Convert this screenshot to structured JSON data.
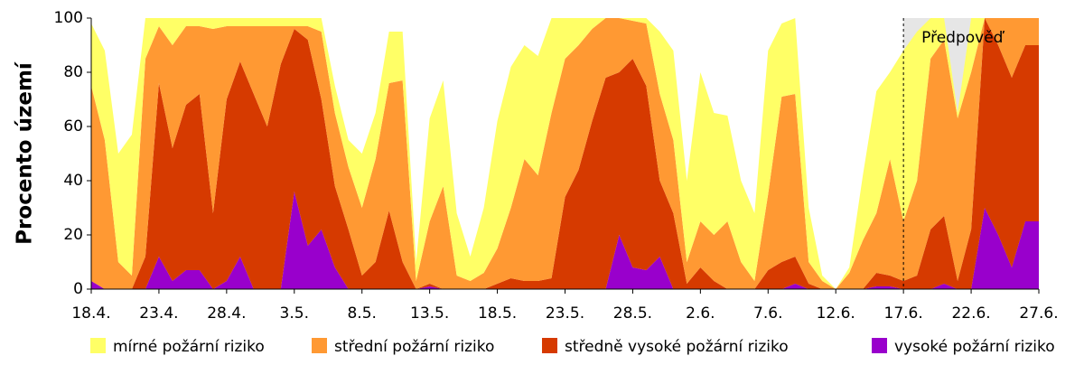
{
  "chart_data": {
    "type": "stacked_area",
    "y_label": "Procento území",
    "categories": [
      "18.4.",
      null,
      null,
      null,
      null,
      "23.4.",
      null,
      null,
      null,
      null,
      "28.4.",
      null,
      null,
      null,
      null,
      "3.5.",
      null,
      null,
      null,
      null,
      "8.5.",
      null,
      null,
      null,
      null,
      "13.5.",
      null,
      null,
      null,
      null,
      "18.5.",
      null,
      null,
      null,
      null,
      "23.5.",
      null,
      null,
      null,
      null,
      "28.5.",
      null,
      null,
      null,
      null,
      "2.6.",
      null,
      null,
      null,
      null,
      "7.6.",
      null,
      null,
      null,
      null,
      "12.6.",
      null,
      null,
      null,
      null,
      "17.6.",
      null,
      null,
      null,
      null,
      "22.6.",
      null,
      null,
      null,
      null,
      "27.6."
    ],
    "series": [
      {
        "name": "mírné požární riziko",
        "color": "#ffff66",
        "values": [
          23,
          33,
          40,
          52,
          15,
          3,
          10,
          3,
          3,
          4,
          3,
          3,
          3,
          3,
          3,
          3,
          3,
          5,
          10,
          10,
          20,
          17,
          19,
          18,
          7,
          38,
          39,
          23,
          9,
          24,
          47,
          52,
          42,
          44,
          35,
          15,
          10,
          4,
          0,
          0,
          1,
          2,
          23,
          33,
          30,
          55,
          45,
          39,
          30,
          25,
          53,
          27,
          28,
          20,
          2,
          0,
          2,
          24,
          45,
          32,
          63,
          55,
          15,
          8,
          2,
          20,
          0,
          0,
          0,
          0,
          0
        ]
      },
      {
        "name": "střední požární riziko",
        "color": "#ff9933",
        "values": [
          72,
          55,
          10,
          5,
          73,
          21,
          38,
          29,
          25,
          68,
          27,
          13,
          25,
          37,
          14,
          1,
          5,
          25,
          27,
          23,
          25,
          38,
          47,
          67,
          3,
          23,
          38,
          5,
          3,
          6,
          13,
          26,
          45,
          39,
          61,
          51,
          46,
          34,
          22,
          20,
          14,
          23,
          32,
          27,
          8,
          17,
          17,
          25,
          10,
          3,
          28,
          61,
          60,
          8,
          3,
          0,
          6,
          18,
          22,
          43,
          22,
          35,
          63,
          65,
          60,
          58,
          0,
          10,
          22,
          10,
          10
        ]
      },
      {
        "name": "středně vysoké požární riziko",
        "color": "#d63a00",
        "values": [
          0,
          0,
          0,
          0,
          12,
          64,
          49,
          61,
          65,
          28,
          67,
          72,
          72,
          60,
          83,
          60,
          76,
          48,
          30,
          22,
          5,
          10,
          29,
          10,
          0,
          1,
          0,
          0,
          0,
          0,
          2,
          4,
          3,
          3,
          4,
          34,
          44,
          62,
          78,
          60,
          77,
          68,
          28,
          28,
          2,
          8,
          3,
          0,
          0,
          0,
          7,
          10,
          10,
          2,
          0,
          0,
          0,
          0,
          5,
          4,
          3,
          5,
          22,
          25,
          3,
          22,
          70,
          70,
          70,
          65,
          65
        ]
      },
      {
        "name": "vysoké požární riziko",
        "color": "#9900cc",
        "values": [
          3,
          0,
          0,
          0,
          0,
          12,
          3,
          7,
          7,
          0,
          3,
          12,
          0,
          0,
          0,
          36,
          16,
          22,
          8,
          0,
          0,
          0,
          0,
          0,
          0,
          1,
          0,
          0,
          0,
          0,
          0,
          0,
          0,
          0,
          0,
          0,
          0,
          0,
          0,
          20,
          8,
          7,
          12,
          0,
          0,
          0,
          0,
          0,
          0,
          0,
          0,
          0,
          2,
          0,
          0,
          0,
          0,
          0,
          1,
          1,
          0,
          0,
          0,
          2,
          0,
          0,
          30,
          20,
          8,
          25,
          25
        ]
      }
    ],
    "ylim": [
      0,
      100
    ],
    "yticks": [
      0,
      20,
      40,
      60,
      80,
      100
    ],
    "forecast_label": "Předpověď",
    "forecast_start": "17.6.",
    "forecast_color": "#e6e6e6",
    "legend": "bottom"
  }
}
